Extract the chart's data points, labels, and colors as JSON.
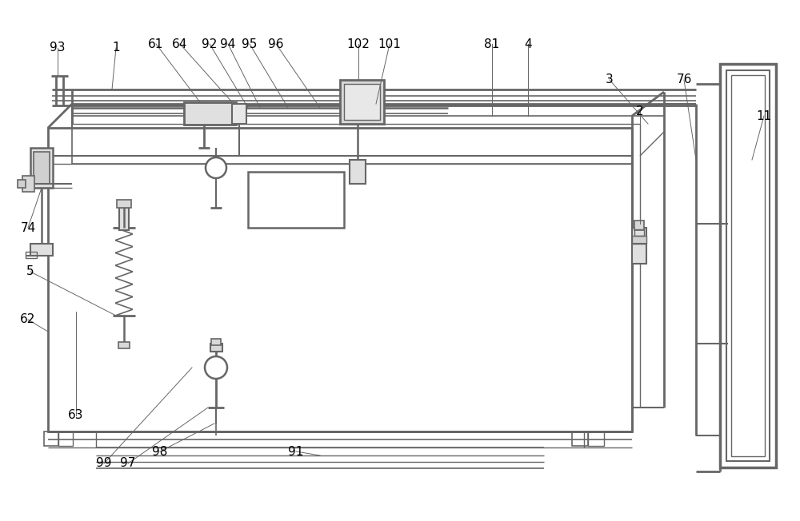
{
  "bg_color": "#ffffff",
  "lc": "#666666",
  "lw": 1.0,
  "figsize": [
    10.0,
    6.52
  ]
}
